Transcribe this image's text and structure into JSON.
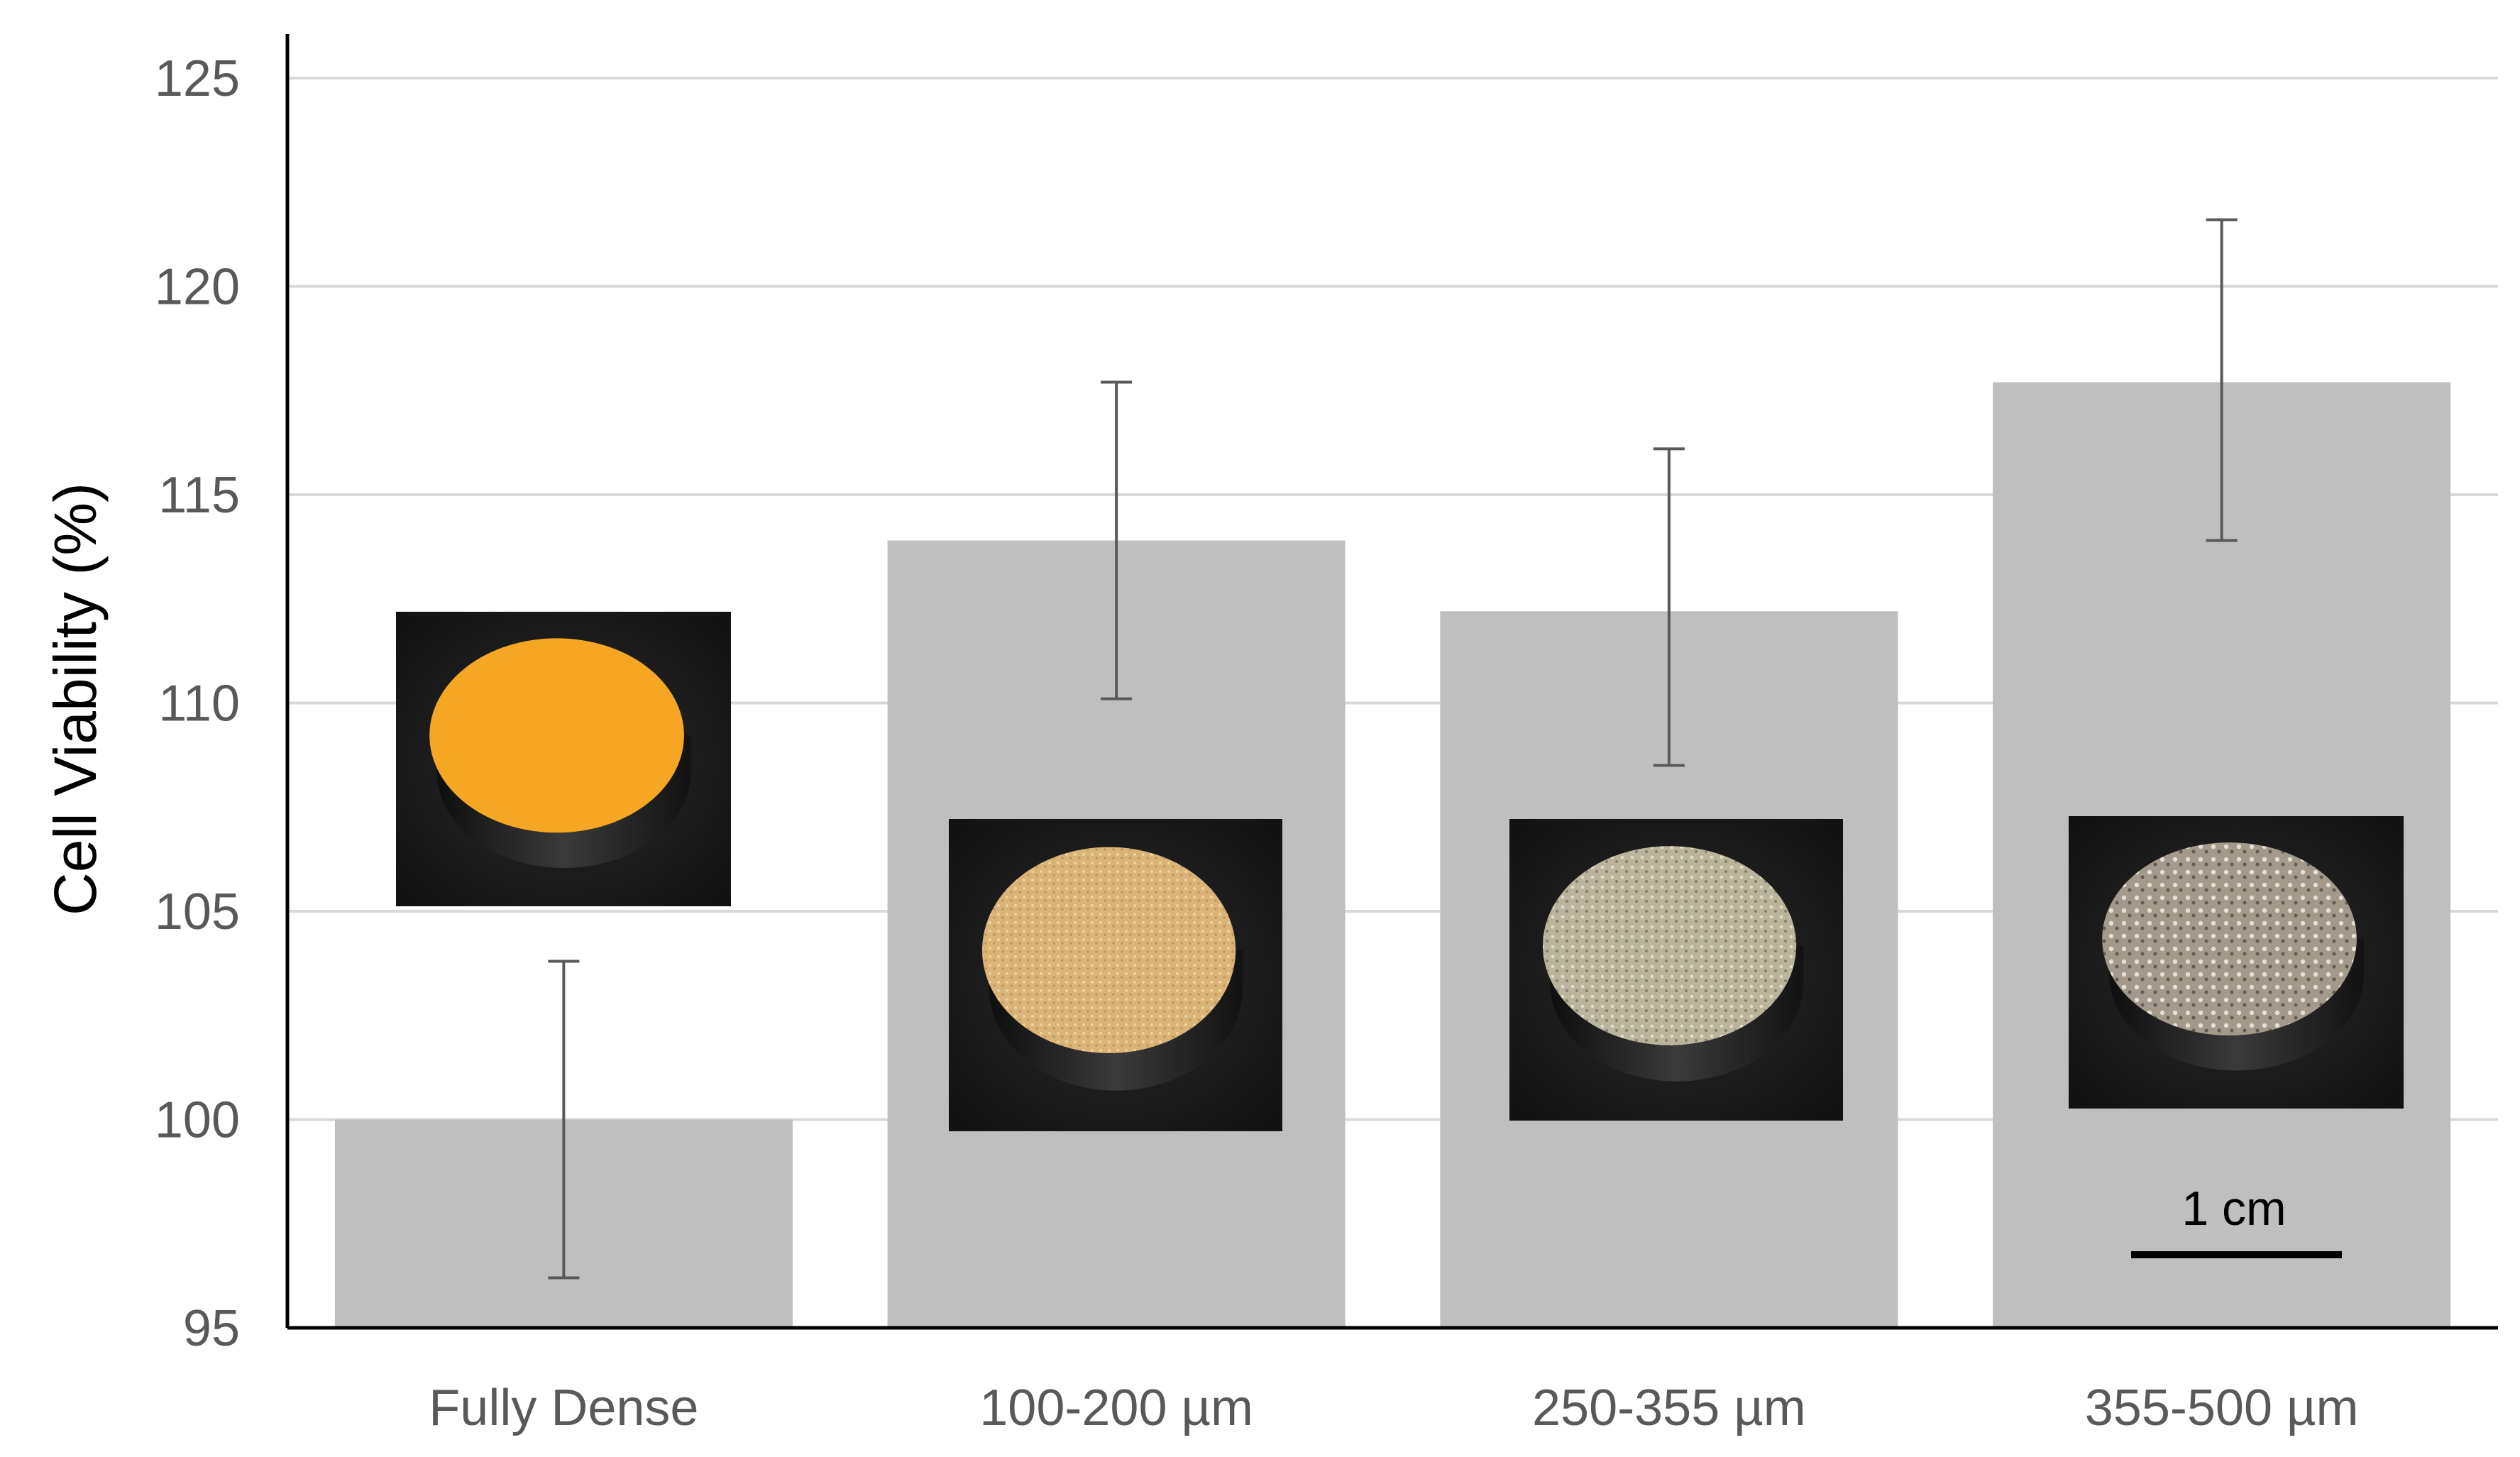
{
  "chart_data": {
    "type": "bar",
    "categories": [
      "Fully Dense",
      "100-200 µm",
      "250-355 µm",
      "355-500 µm"
    ],
    "values": [
      100,
      113.9,
      112.2,
      117.7
    ],
    "error_low": [
      96.2,
      110.1,
      108.5,
      113.9
    ],
    "error_high": [
      103.8,
      117.7,
      116.1,
      121.6
    ],
    "ylabel": "Cell Viability (%)",
    "xlabel": "",
    "ylim": [
      95,
      125
    ],
    "yticks": [
      95,
      100,
      105,
      110,
      115,
      120,
      125
    ],
    "grid": true,
    "bar_color": "#bfbfbf",
    "grid_color": "#d9d9d9",
    "errorbar_color": "#595959",
    "sample_photos": [
      {
        "category": "Fully Dense",
        "surface_color": "#f5a623"
      },
      {
        "category": "100-200 µm",
        "surface_color": "#d9b377"
      },
      {
        "category": "250-355 µm",
        "surface_color": "#b9b49b"
      },
      {
        "category": "355-500 µm",
        "surface_color": "#a39a8c"
      }
    ],
    "scale_bar_label": "1 cm"
  }
}
